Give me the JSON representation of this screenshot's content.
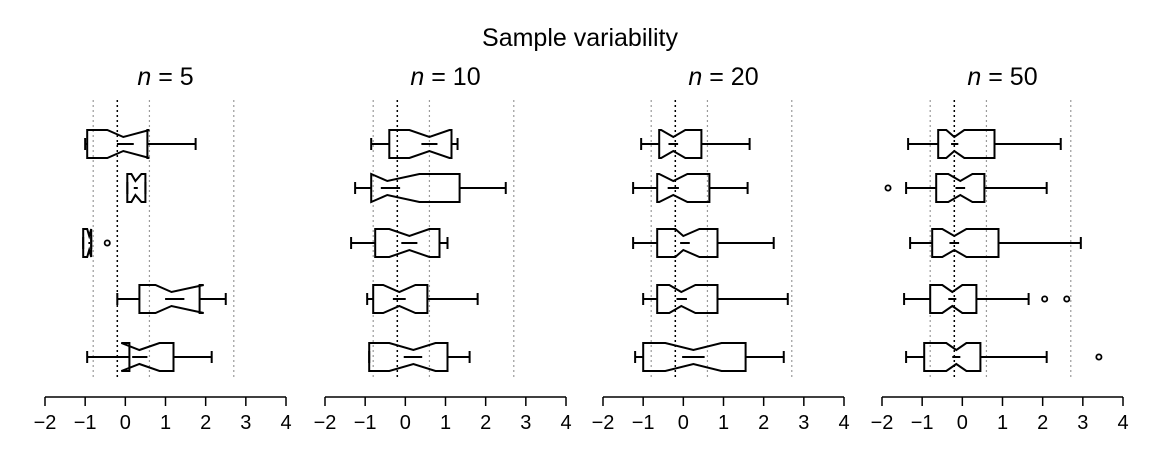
{
  "chart_data": {
    "type": "boxplot",
    "title": "Sample variability",
    "xlim": [
      -2,
      4
    ],
    "x_ticks": [
      -2,
      -1,
      0,
      1,
      2,
      3,
      4
    ],
    "reference_lines": {
      "dark_dotted": [
        -0.2
      ],
      "gray_dotted": [
        -0.8,
        0.6,
        2.7
      ]
    },
    "panels": [
      {
        "n_symbol": "n",
        "n_value": "= 5",
        "boxes": [
          {
            "wlo": -1.0,
            "q1": -0.95,
            "notch_lo": -0.45,
            "med": -0.05,
            "notch_hi": 0.6,
            "q3": 0.55,
            "whi": 1.75,
            "outliers": []
          },
          {
            "wlo": 0.05,
            "q1": 0.05,
            "notch_lo": 0.15,
            "med": 0.25,
            "notch_hi": 0.4,
            "q3": 0.5,
            "whi": 0.5,
            "outliers": []
          },
          {
            "wlo": -1.05,
            "q1": -1.05,
            "notch_lo": -0.95,
            "med": -0.9,
            "notch_hi": -0.85,
            "q3": -0.85,
            "whi": -0.85,
            "outliers": [
              -0.45
            ]
          },
          {
            "wlo": -0.2,
            "q1": 0.35,
            "notch_lo": 0.75,
            "med": 1.15,
            "notch_hi": 1.95,
            "q3": 1.85,
            "whi": 2.5,
            "outliers": []
          },
          {
            "wlo": -0.95,
            "q1": 0.1,
            "notch_lo": -0.1,
            "med": 0.35,
            "notch_hi": 0.85,
            "q3": 1.2,
            "whi": 2.15,
            "outliers": []
          }
        ]
      },
      {
        "n_symbol": "n",
        "n_value": "= 10",
        "boxes": [
          {
            "wlo": -0.85,
            "q1": -0.4,
            "notch_lo": 0.1,
            "med": 0.6,
            "notch_hi": 1.1,
            "q3": 1.15,
            "whi": 1.3,
            "outliers": []
          },
          {
            "wlo": -1.25,
            "q1": -0.85,
            "notch_lo": -0.85,
            "med": -0.45,
            "notch_hi": 0.35,
            "q3": 1.35,
            "whi": 2.5,
            "outliers": []
          },
          {
            "wlo": -1.35,
            "q1": -0.75,
            "notch_lo": -0.4,
            "med": 0.1,
            "notch_hi": 0.6,
            "q3": 0.85,
            "whi": 1.05,
            "outliers": []
          },
          {
            "wlo": -0.95,
            "q1": -0.8,
            "notch_lo": -0.55,
            "med": -0.15,
            "notch_hi": 0.25,
            "q3": 0.55,
            "whi": 1.8,
            "outliers": []
          },
          {
            "wlo": -0.9,
            "q1": -0.9,
            "notch_lo": -0.4,
            "med": 0.2,
            "notch_hi": 0.75,
            "q3": 1.05,
            "whi": 1.6,
            "outliers": []
          }
        ]
      },
      {
        "n_symbol": "n",
        "n_value": "= 20",
        "boxes": [
          {
            "wlo": -1.05,
            "q1": -0.6,
            "notch_lo": -0.55,
            "med": -0.25,
            "notch_hi": 0.05,
            "q3": 0.45,
            "whi": 1.65,
            "outliers": []
          },
          {
            "wlo": -1.25,
            "q1": -0.65,
            "notch_lo": -0.6,
            "med": -0.25,
            "notch_hi": 0.1,
            "q3": 0.65,
            "whi": 1.6,
            "outliers": []
          },
          {
            "wlo": -1.25,
            "q1": -0.65,
            "notch_lo": -0.2,
            "med": 0.0,
            "notch_hi": 0.4,
            "q3": 0.85,
            "whi": 2.25,
            "outliers": []
          },
          {
            "wlo": -1.0,
            "q1": -0.65,
            "notch_lo": -0.35,
            "med": -0.05,
            "notch_hi": 0.3,
            "q3": 0.85,
            "whi": 2.6,
            "outliers": []
          },
          {
            "wlo": -1.2,
            "q1": -1.0,
            "notch_lo": -0.45,
            "med": 0.25,
            "notch_hi": 0.95,
            "q3": 1.55,
            "whi": 2.5,
            "outliers": []
          }
        ]
      },
      {
        "n_symbol": "n",
        "n_value": "= 50",
        "boxes": [
          {
            "wlo": -1.35,
            "q1": -0.6,
            "notch_lo": -0.4,
            "med": -0.2,
            "notch_hi": 0.05,
            "q3": 0.8,
            "whi": 2.45,
            "outliers": []
          },
          {
            "wlo": -1.4,
            "q1": -0.65,
            "notch_lo": -0.35,
            "med": -0.05,
            "notch_hi": 0.25,
            "q3": 0.55,
            "whi": 2.1,
            "outliers": [
              -1.85
            ]
          },
          {
            "wlo": -1.3,
            "q1": -0.75,
            "notch_lo": -0.5,
            "med": -0.2,
            "notch_hi": 0.1,
            "q3": 0.9,
            "whi": 2.95,
            "outliers": []
          },
          {
            "wlo": -1.45,
            "q1": -0.8,
            "notch_lo": -0.5,
            "med": -0.25,
            "notch_hi": 0.0,
            "q3": 0.35,
            "whi": 1.65,
            "outliers": [
              2.05,
              2.6
            ]
          },
          {
            "wlo": -1.4,
            "q1": -0.95,
            "notch_lo": -0.4,
            "med": -0.15,
            "notch_hi": 0.1,
            "q3": 0.45,
            "whi": 2.1,
            "outliers": [
              3.4
            ]
          }
        ]
      }
    ]
  }
}
